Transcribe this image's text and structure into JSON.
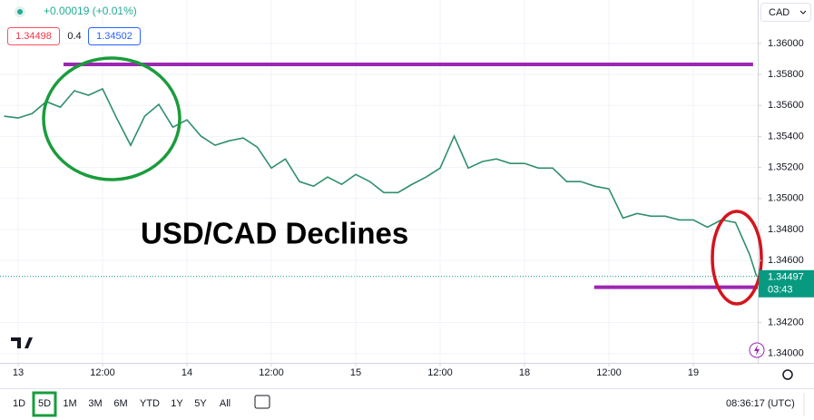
{
  "chart_data": {
    "type": "line",
    "title": "USD/CAD Declines",
    "change": "+0.00019 (+0.01%)",
    "bid": 1.34498,
    "spread": 0.4,
    "ask": 1.34502,
    "currency": "CAD",
    "last_price": 1.34497,
    "countdown": "03:43",
    "ranges": [
      "1D",
      "5D",
      "1M",
      "3M",
      "6M",
      "YTD",
      "1Y",
      "5Y",
      "All"
    ],
    "active_range": "5D",
    "clock": "08:36:17 (UTC)",
    "color": "#2f8f6a",
    "grid": true,
    "xlim": [
      -2.58,
      105.16
    ],
    "ylim": [
      1.3394,
      1.3628
    ],
    "xticks": [
      {
        "value": 0,
        "label": "13"
      },
      {
        "value": 12,
        "label": "12:00"
      },
      {
        "value": 24,
        "label": "14"
      },
      {
        "value": 36,
        "label": "12:00"
      },
      {
        "value": 48,
        "label": "15"
      },
      {
        "value": 60,
        "label": "12:00"
      },
      {
        "value": 72,
        "label": "18"
      },
      {
        "value": 84,
        "label": "12:00"
      },
      {
        "value": 96,
        "label": "19"
      }
    ],
    "yticks": [
      {
        "value": 1.34,
        "label": "1.34000"
      },
      {
        "value": 1.342,
        "label": "1.34200"
      },
      {
        "value": 1.346,
        "label": "1.34600"
      },
      {
        "value": 1.348,
        "label": "1.34800"
      },
      {
        "value": 1.35,
        "label": "1.35000"
      },
      {
        "value": 1.352,
        "label": "1.35200"
      },
      {
        "value": 1.354,
        "label": "1.35400"
      },
      {
        "value": 1.356,
        "label": "1.35600"
      },
      {
        "value": 1.358,
        "label": "1.35800"
      },
      {
        "value": 1.36,
        "label": "1.36000"
      }
    ],
    "x": [
      -2,
      0,
      2,
      4,
      6,
      8,
      10,
      12,
      14,
      16,
      18,
      20,
      22,
      24,
      26,
      28,
      30,
      32,
      34,
      36,
      38,
      40,
      42,
      44,
      46,
      48,
      50,
      52,
      54,
      56,
      58,
      60,
      62,
      64,
      66,
      68,
      70,
      72,
      74,
      76,
      78,
      80,
      82,
      84,
      86,
      88,
      90,
      92,
      94,
      96,
      98,
      100,
      102,
      104,
      105
    ],
    "values": [
      1.35531,
      1.35519,
      1.35548,
      1.35625,
      1.35589,
      1.35695,
      1.35666,
      1.35707,
      1.35519,
      1.35343,
      1.35531,
      1.35607,
      1.3546,
      1.35507,
      1.35402,
      1.35343,
      1.35372,
      1.3539,
      1.35331,
      1.35196,
      1.35255,
      1.35109,
      1.35079,
      1.35138,
      1.35091,
      1.35155,
      1.35109,
      1.35038,
      1.35038,
      1.35091,
      1.35138,
      1.35196,
      1.35402,
      1.35196,
      1.35238,
      1.35255,
      1.35226,
      1.35226,
      1.35196,
      1.35196,
      1.35109,
      1.35109,
      1.35079,
      1.35062,
      1.34874,
      1.34903,
      1.34886,
      1.34886,
      1.34862,
      1.34862,
      1.34815,
      1.34862,
      1.34845,
      1.34639,
      1.34497
    ],
    "hlines": [
      {
        "value": 1.35865,
        "x": [
          6.45,
          104.5
        ],
        "color": "#9c27b0"
      },
      {
        "value": 1.34428,
        "x": [
          81.9,
          105.16
        ],
        "color": "#9c27b0"
      }
    ]
  }
}
